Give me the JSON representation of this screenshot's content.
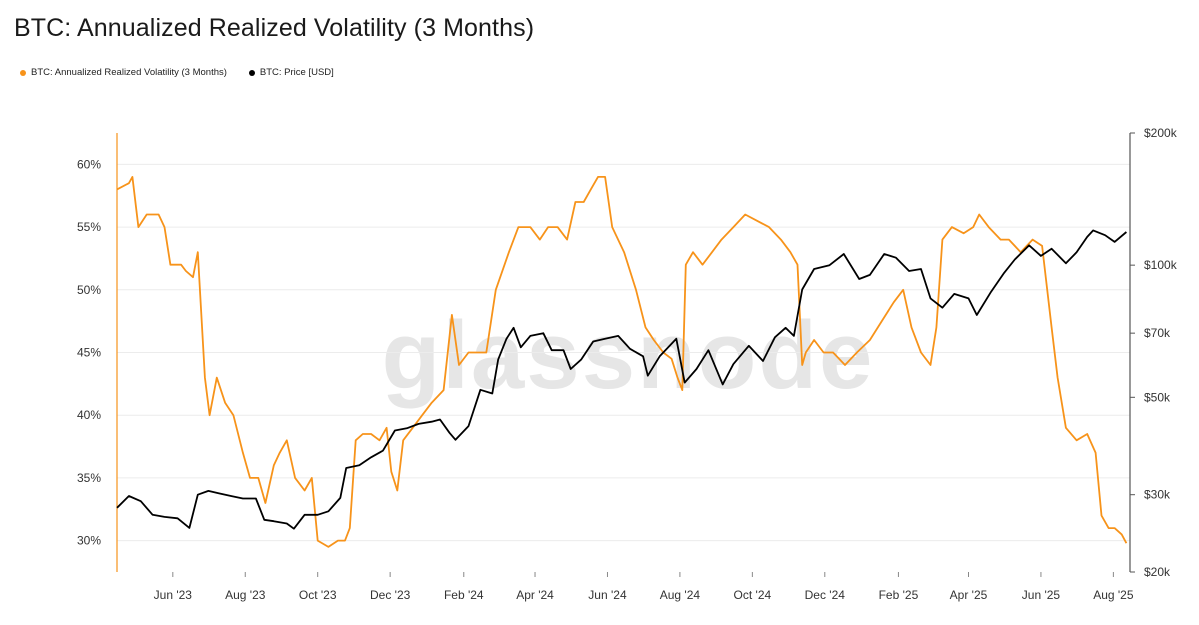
{
  "title": "BTC: Annualized Realized Volatility (3 Months)",
  "watermark": "glassnode",
  "legend": [
    {
      "label": "BTC: Annualized Realized Volatility (3 Months)",
      "color": "#f7931a"
    },
    {
      "label": "BTC: Price [USD]",
      "color": "#000000"
    }
  ],
  "chart_data": {
    "type": "line",
    "x_tick_labels": [
      "Jun '23",
      "Aug '23",
      "Oct '23",
      "Dec '23",
      "Feb '24",
      "Apr '24",
      "Jun '24",
      "Aug '24",
      "Oct '24",
      "Dec '24",
      "Feb '25",
      "Apr '25",
      "Jun '25",
      "Aug '25"
    ],
    "y_left": {
      "ticks": [
        "30%",
        "35%",
        "40%",
        "45%",
        "50%",
        "55%",
        "60%"
      ],
      "range": [
        27.5,
        62.5
      ],
      "unit": "%"
    },
    "y_right": {
      "ticks": [
        "$20k",
        "$30k",
        "$50k",
        "$70k",
        "$100k",
        "$200k"
      ],
      "tick_values": [
        20000,
        30000,
        50000,
        70000,
        100000,
        200000
      ],
      "scale": "log",
      "range": [
        20000,
        200000
      ]
    },
    "x_range": [
      "2023-04-15",
      "2025-08-15"
    ],
    "series": [
      {
        "name": "BTC: Annualized Realized Volatility (3 Months)",
        "axis": "left",
        "color": "#f7931a",
        "points": [
          [
            "2023-04-15",
            58
          ],
          [
            "2023-04-25",
            58.5
          ],
          [
            "2023-04-28",
            59
          ],
          [
            "2023-05-03",
            55
          ],
          [
            "2023-05-10",
            56
          ],
          [
            "2023-05-20",
            56
          ],
          [
            "2023-05-25",
            55
          ],
          [
            "2023-05-30",
            52
          ],
          [
            "2023-06-08",
            52
          ],
          [
            "2023-06-12",
            51.5
          ],
          [
            "2023-06-18",
            51
          ],
          [
            "2023-06-22",
            53
          ],
          [
            "2023-06-28",
            43
          ],
          [
            "2023-07-02",
            40
          ],
          [
            "2023-07-08",
            43
          ],
          [
            "2023-07-15",
            41
          ],
          [
            "2023-07-22",
            40
          ],
          [
            "2023-07-30",
            37
          ],
          [
            "2023-08-05",
            35
          ],
          [
            "2023-08-12",
            35
          ],
          [
            "2023-08-18",
            33
          ],
          [
            "2023-08-25",
            36
          ],
          [
            "2023-08-30",
            37
          ],
          [
            "2023-09-05",
            38
          ],
          [
            "2023-09-12",
            35
          ],
          [
            "2023-09-20",
            34
          ],
          [
            "2023-09-26",
            35
          ],
          [
            "2023-10-01",
            30
          ],
          [
            "2023-10-10",
            29.5
          ],
          [
            "2023-10-18",
            30
          ],
          [
            "2023-10-24",
            30
          ],
          [
            "2023-10-28",
            31
          ],
          [
            "2023-11-02",
            38
          ],
          [
            "2023-11-08",
            38.5
          ],
          [
            "2023-11-15",
            38.5
          ],
          [
            "2023-11-22",
            38
          ],
          [
            "2023-11-28",
            39
          ],
          [
            "2023-12-02",
            35.5
          ],
          [
            "2023-12-07",
            34
          ],
          [
            "2023-12-12",
            38
          ],
          [
            "2023-12-20",
            39
          ],
          [
            "2023-12-28",
            40
          ],
          [
            "2024-01-05",
            41
          ],
          [
            "2024-01-15",
            42
          ],
          [
            "2024-01-22",
            48
          ],
          [
            "2024-01-28",
            44
          ],
          [
            "2024-02-05",
            45
          ],
          [
            "2024-02-12",
            45
          ],
          [
            "2024-02-20",
            45
          ],
          [
            "2024-02-28",
            50
          ],
          [
            "2024-03-10",
            53
          ],
          [
            "2024-03-18",
            55
          ],
          [
            "2024-03-28",
            55
          ],
          [
            "2024-04-05",
            54
          ],
          [
            "2024-04-12",
            55
          ],
          [
            "2024-04-20",
            55
          ],
          [
            "2024-04-28",
            54
          ],
          [
            "2024-05-05",
            57
          ],
          [
            "2024-05-12",
            57
          ],
          [
            "2024-05-18",
            58
          ],
          [
            "2024-05-24",
            59
          ],
          [
            "2024-05-30",
            59
          ],
          [
            "2024-06-05",
            55
          ],
          [
            "2024-06-15",
            53
          ],
          [
            "2024-06-25",
            50
          ],
          [
            "2024-07-03",
            47
          ],
          [
            "2024-07-10",
            46
          ],
          [
            "2024-07-18",
            45
          ],
          [
            "2024-07-25",
            44.5
          ],
          [
            "2024-07-30",
            43
          ],
          [
            "2024-08-03",
            42
          ],
          [
            "2024-08-06",
            52
          ],
          [
            "2024-08-12",
            53
          ],
          [
            "2024-08-20",
            52
          ],
          [
            "2024-08-28",
            53
          ],
          [
            "2024-09-05",
            54
          ],
          [
            "2024-09-15",
            55
          ],
          [
            "2024-09-25",
            56
          ],
          [
            "2024-10-05",
            55.5
          ],
          [
            "2024-10-15",
            55
          ],
          [
            "2024-10-25",
            54
          ],
          [
            "2024-11-02",
            53
          ],
          [
            "2024-11-08",
            52
          ],
          [
            "2024-11-12",
            44
          ],
          [
            "2024-11-15",
            45
          ],
          [
            "2024-11-22",
            46
          ],
          [
            "2024-11-30",
            45
          ],
          [
            "2024-12-08",
            45
          ],
          [
            "2024-12-18",
            44
          ],
          [
            "2024-12-28",
            45
          ],
          [
            "2025-01-08",
            46
          ],
          [
            "2025-01-18",
            47.5
          ],
          [
            "2025-01-28",
            49
          ],
          [
            "2025-02-05",
            50
          ],
          [
            "2025-02-12",
            47
          ],
          [
            "2025-02-20",
            45
          ],
          [
            "2025-02-28",
            44
          ],
          [
            "2025-03-05",
            47
          ],
          [
            "2025-03-10",
            54
          ],
          [
            "2025-03-18",
            55
          ],
          [
            "2025-03-28",
            54.5
          ],
          [
            "2025-04-05",
            55
          ],
          [
            "2025-04-10",
            56
          ],
          [
            "2025-04-18",
            55
          ],
          [
            "2025-04-28",
            54
          ],
          [
            "2025-05-05",
            54
          ],
          [
            "2025-05-15",
            53
          ],
          [
            "2025-05-25",
            54
          ],
          [
            "2025-06-02",
            53.5
          ],
          [
            "2025-06-10",
            47
          ],
          [
            "2025-06-15",
            43
          ],
          [
            "2025-06-22",
            39
          ],
          [
            "2025-07-01",
            38
          ],
          [
            "2025-07-10",
            38.5
          ],
          [
            "2025-07-17",
            37
          ],
          [
            "2025-07-22",
            32
          ],
          [
            "2025-07-28",
            31
          ],
          [
            "2025-08-02",
            31
          ],
          [
            "2025-08-08",
            30.5
          ],
          [
            "2025-08-12",
            29.8
          ]
        ]
      },
      {
        "name": "BTC: Price [USD]",
        "axis": "right",
        "color": "#000000",
        "points": [
          [
            "2023-04-15",
            28000
          ],
          [
            "2023-04-25",
            29800
          ],
          [
            "2023-05-05",
            29000
          ],
          [
            "2023-05-15",
            27000
          ],
          [
            "2023-05-25",
            26700
          ],
          [
            "2023-06-05",
            26500
          ],
          [
            "2023-06-15",
            25200
          ],
          [
            "2023-06-22",
            30000
          ],
          [
            "2023-07-01",
            30600
          ],
          [
            "2023-07-10",
            30200
          ],
          [
            "2023-07-20",
            29800
          ],
          [
            "2023-07-30",
            29400
          ],
          [
            "2023-08-10",
            29400
          ],
          [
            "2023-08-17",
            26300
          ],
          [
            "2023-08-25",
            26100
          ],
          [
            "2023-09-05",
            25800
          ],
          [
            "2023-09-11",
            25100
          ],
          [
            "2023-09-20",
            27000
          ],
          [
            "2023-10-01",
            27000
          ],
          [
            "2023-10-10",
            27500
          ],
          [
            "2023-10-20",
            29500
          ],
          [
            "2023-10-25",
            34500
          ],
          [
            "2023-11-05",
            35000
          ],
          [
            "2023-11-15",
            36500
          ],
          [
            "2023-11-25",
            37800
          ],
          [
            "2023-12-05",
            42000
          ],
          [
            "2023-12-15",
            42500
          ],
          [
            "2023-12-25",
            43500
          ],
          [
            "2024-01-05",
            44000
          ],
          [
            "2024-01-12",
            44500
          ],
          [
            "2024-01-20",
            41500
          ],
          [
            "2024-01-25",
            40000
          ],
          [
            "2024-02-05",
            43000
          ],
          [
            "2024-02-15",
            52000
          ],
          [
            "2024-02-25",
            51000
          ],
          [
            "2024-03-01",
            61000
          ],
          [
            "2024-03-08",
            68000
          ],
          [
            "2024-03-14",
            72000
          ],
          [
            "2024-03-20",
            65000
          ],
          [
            "2024-03-28",
            69000
          ],
          [
            "2024-04-08",
            70000
          ],
          [
            "2024-04-15",
            64000
          ],
          [
            "2024-04-25",
            64000
          ],
          [
            "2024-05-01",
            58000
          ],
          [
            "2024-05-10",
            61000
          ],
          [
            "2024-05-20",
            67000
          ],
          [
            "2024-05-30",
            68000
          ],
          [
            "2024-06-10",
            69000
          ],
          [
            "2024-06-20",
            64500
          ],
          [
            "2024-07-01",
            62000
          ],
          [
            "2024-07-05",
            56000
          ],
          [
            "2024-07-15",
            62000
          ],
          [
            "2024-07-29",
            68000
          ],
          [
            "2024-08-05",
            54000
          ],
          [
            "2024-08-15",
            58000
          ],
          [
            "2024-08-25",
            64000
          ],
          [
            "2024-09-06",
            53500
          ],
          [
            "2024-09-15",
            59500
          ],
          [
            "2024-09-28",
            65500
          ],
          [
            "2024-10-10",
            60500
          ],
          [
            "2024-10-20",
            68500
          ],
          [
            "2024-10-29",
            72000
          ],
          [
            "2024-11-05",
            69000
          ],
          [
            "2024-11-12",
            88000
          ],
          [
            "2024-11-22",
            98000
          ],
          [
            "2024-12-05",
            100000
          ],
          [
            "2024-12-17",
            106000
          ],
          [
            "2024-12-30",
            93000
          ],
          [
            "2025-01-08",
            95000
          ],
          [
            "2025-01-20",
            106000
          ],
          [
            "2025-01-30",
            104000
          ],
          [
            "2025-02-10",
            97000
          ],
          [
            "2025-02-20",
            98000
          ],
          [
            "2025-02-28",
            84000
          ],
          [
            "2025-03-10",
            80000
          ],
          [
            "2025-03-20",
            86000
          ],
          [
            "2025-04-01",
            84000
          ],
          [
            "2025-04-08",
            77000
          ],
          [
            "2025-04-20",
            87000
          ],
          [
            "2025-05-01",
            96000
          ],
          [
            "2025-05-10",
            103000
          ],
          [
            "2025-05-22",
            111000
          ],
          [
            "2025-06-01",
            105000
          ],
          [
            "2025-06-10",
            109000
          ],
          [
            "2025-06-22",
            101000
          ],
          [
            "2025-07-01",
            107000
          ],
          [
            "2025-07-10",
            116000
          ],
          [
            "2025-07-15",
            120000
          ],
          [
            "2025-07-25",
            117000
          ],
          [
            "2025-08-02",
            113000
          ],
          [
            "2025-08-12",
            119000
          ]
        ]
      }
    ]
  }
}
